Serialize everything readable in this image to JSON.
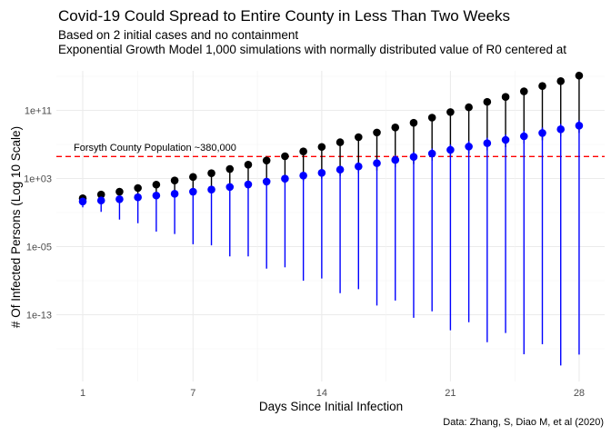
{
  "chart_data": {
    "type": "scatter",
    "title": "Covid-19 Could Spread to Entire County in Less Than Two Weeks",
    "subtitle_lines": [
      "Based on 2 initial cases and no containment",
      "Exponential Growth Model 1,000 simulations with normally distributed value of R0 centered at"
    ],
    "xlabel": "Days Since Initial Infection",
    "ylabel": "# Of Infected Persons (Log 10 Scale)",
    "caption": "Data: Zhang, S, Diao M, et al (2020)",
    "y_scale": "log10",
    "x_ticks": [
      "1",
      "7",
      "14",
      "21",
      "28"
    ],
    "y_ticks": [
      "1e+11",
      "1e+03",
      "1e-05",
      "1e-13"
    ],
    "grid": true,
    "x": [
      1,
      2,
      3,
      4,
      5,
      6,
      7,
      8,
      9,
      10,
      11,
      12,
      13,
      14,
      15,
      16,
      17,
      18,
      19,
      20,
      21,
      22,
      23,
      24,
      25,
      26,
      27,
      28
    ],
    "series": [
      {
        "color": "#000000",
        "values": [
          4.7,
          13,
          28,
          76,
          190,
          590,
          1500,
          4200,
          13000,
          42000,
          130000,
          410000,
          1500000.0,
          5100000.0,
          18000000.0,
          71000000.0,
          250000000.0,
          980000000.0,
          3500000000.0,
          14000000000.0,
          63000000000.0,
          230000000000.0,
          1000000000000.0,
          3800000000000.0,
          17000000000000.0,
          72000000000000.0,
          270000000000000.0,
          1200000000000000.0
        ]
      },
      {
        "color": "#0000ff",
        "values": [
          2.0,
          2.6,
          3.7,
          6.2,
          10,
          16,
          28,
          50,
          100,
          200,
          430,
          950,
          2200,
          4600,
          11000,
          26000,
          63000,
          150000,
          350000,
          850000,
          2300000.0,
          5600000.0,
          14000000.0,
          34000000.0,
          91000000.0,
          220000000.0,
          600000000.0,
          1600000000.0
        ],
        "lower": [
          0.41,
          0.12,
          0.015,
          0.0056,
          0.00058,
          0.0003,
          1.9e-05,
          1.4e-05,
          7.1e-07,
          7.1e-07,
          2.6e-08,
          3.7e-08,
          1e-09,
          1.8e-09,
          3.4e-11,
          1e-10,
          1.2e-12,
          4.7e-12,
          4.4e-14,
          2.5e-13,
          1.5e-15,
          1.3e-14,
          6e-17,
          7.1e-16,
          2.3e-18,
          3.4e-17,
          1.1e-19,
          2.1e-18
        ]
      }
    ],
    "reference_line": {
      "value": 380000,
      "label": "Forsyth County Population ~380,000",
      "color": "#ff0000",
      "style": "dashed"
    }
  }
}
